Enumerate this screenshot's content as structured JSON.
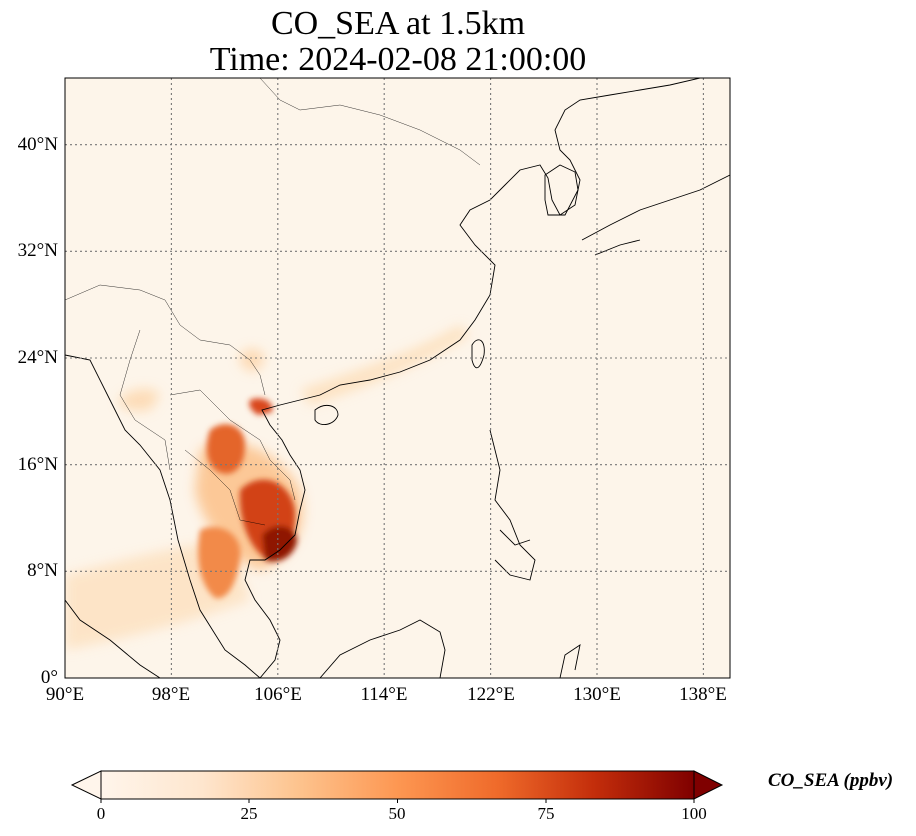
{
  "title": {
    "line1": "CO_SEA at 1.5km",
    "line2": "Time: 2024-02-08 21:00:00"
  },
  "map": {
    "lon_range": [
      90,
      140
    ],
    "lat_range": [
      0,
      45
    ],
    "grid": "dotted",
    "lon_ticks": [
      "90°E",
      "98°E",
      "106°E",
      "114°E",
      "122°E",
      "130°E",
      "138°E"
    ],
    "lat_ticks": [
      "0°",
      "8°N",
      "16°N",
      "24°N",
      "32°N",
      "40°N"
    ],
    "plumes": [
      {
        "region": "central Cambodia / southern Vietnam",
        "level": "high"
      },
      {
        "region": "Mekong delta",
        "level": "very-high"
      },
      {
        "region": "northern Laos",
        "level": "high"
      },
      {
        "region": "Red River delta",
        "level": "high"
      },
      {
        "region": "southern China coast",
        "level": "low"
      },
      {
        "region": "Gulf of Thailand",
        "level": "moderate"
      },
      {
        "region": "northern Myanmar",
        "level": "low"
      }
    ]
  },
  "colorbar": {
    "label": "CO_SEA (ppbv)",
    "ticks": [
      "0",
      "25",
      "50",
      "75",
      "100"
    ],
    "min": 0,
    "max": 100,
    "colormap": [
      "#fff5eb",
      "#fdd9b1",
      "#fdab67",
      "#f4761f",
      "#d34a0f",
      "#a11d06",
      "#7f0000"
    ],
    "extend": "both"
  }
}
